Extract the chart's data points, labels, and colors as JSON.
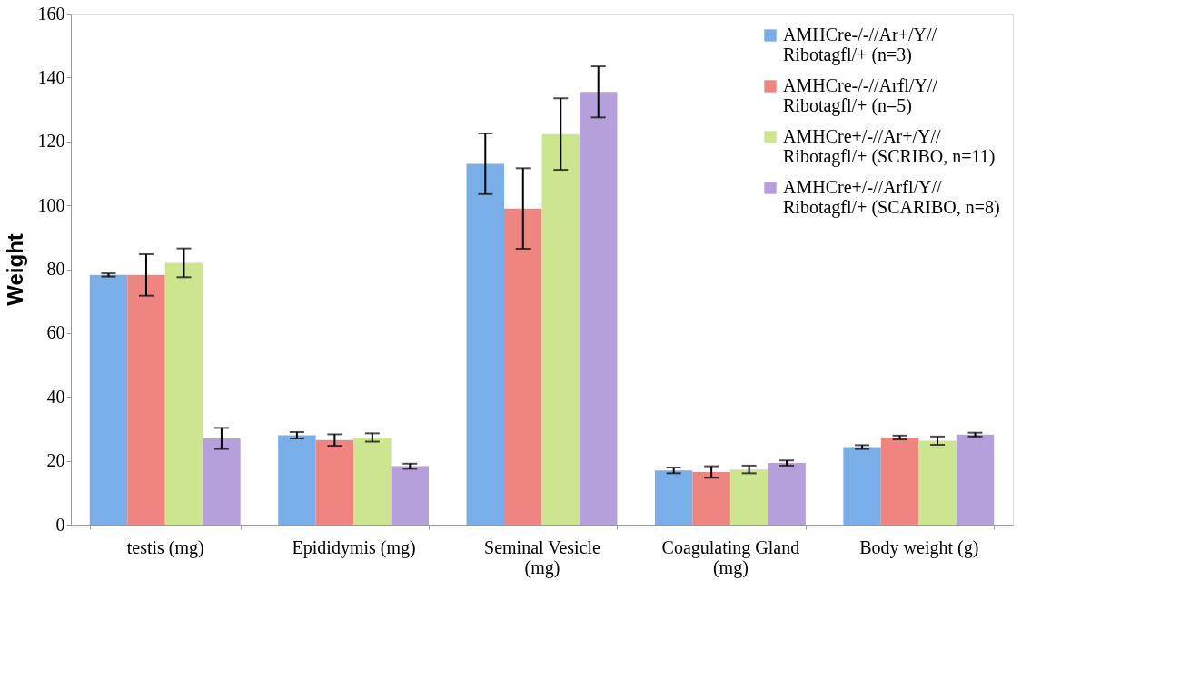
{
  "chart_data": {
    "type": "bar",
    "ylabel": "Weight",
    "categories": [
      "testis (mg)",
      "Epididymis (mg)",
      "Seminal Vesicle (mg)",
      "Coagulating Gland (mg)",
      "Body weight (g)"
    ],
    "series": [
      {
        "name": "AMHCre-/-//Ar+/Y// Ribotagfl/+ (n=3)",
        "color": "#7aaee8",
        "values": [
          78.2,
          28,
          113,
          17,
          24.3
        ],
        "errors": [
          0.5,
          1,
          9.5,
          0.9,
          0.6
        ]
      },
      {
        "name": "AMHCre-/-//Arfl/Y// Ribotagfl/+ (n=5)",
        "color": "#ee8580",
        "values": [
          78.2,
          26.5,
          99,
          16.5,
          27.3
        ],
        "errors": [
          6.5,
          1.8,
          12.6,
          1.8,
          0.6
        ]
      },
      {
        "name": "AMHCre+/-//Ar+/Y// Ribotagfl/+ (SCRIBO, n=11)",
        "color": "#cde58f",
        "values": [
          82,
          27.3,
          122.3,
          17.3,
          26.3
        ],
        "errors": [
          4.5,
          1.3,
          11.2,
          1.2,
          1.3
        ]
      },
      {
        "name": "AMHCre+/-//Arfl/Y// Ribotagfl/+ (SCARIBO, n=8)",
        "color": "#b6a0dc",
        "values": [
          27,
          18.3,
          135.5,
          19.3,
          28.2
        ],
        "errors": [
          3.3,
          0.8,
          8,
          0.8,
          0.6
        ]
      }
    ],
    "ylim": [
      0,
      160
    ],
    "yticks": [
      0,
      20,
      40,
      60,
      80,
      100,
      120,
      140,
      160
    ],
    "legend": "top right",
    "grid": false
  }
}
